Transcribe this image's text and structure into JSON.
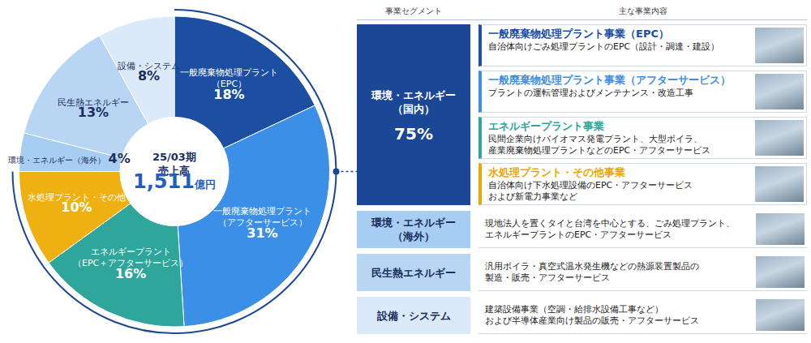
{
  "chart_data": {
    "type": "donut",
    "title": "25/03期",
    "subtitle": "売上高",
    "total": {
      "value": 1511,
      "label": "1,511",
      "unit": "億円"
    },
    "categories": [
      "一般廃棄物処理プラント（EPC）",
      "一般廃棄物処理プラント（アフターサービス）",
      "エネルギープラント（EPC＋アフターサービス）",
      "水処理プラント・その他",
      "環境・エネルギー（海外）",
      "民生熱エネルギー",
      "設備・システム"
    ],
    "values": [
      18,
      31,
      16,
      10,
      4,
      13,
      8
    ],
    "value_labels": [
      "18%",
      "31%",
      "16%",
      "10%",
      "4%",
      "13%",
      "8%"
    ],
    "colors": [
      "#1c4fa1",
      "#3b8fe6",
      "#2ea69b",
      "#eeb111",
      "#a7cdf2",
      "#b8d6f4",
      "#dbe9f8"
    ],
    "data_labels": true
  },
  "table": {
    "header": [
      "事業セグメント",
      "主な事業内容"
    ],
    "segments": [
      {
        "name": "環境・エネルギー（国内）",
        "share": 75,
        "share_label": "75%",
        "color": "#1c4696",
        "entries": [
          {
            "title": "一般廃棄物処理プラント事業（EPC）",
            "color": "#1c4fa1",
            "description": [
              "自治体向けごみ処理プラントのEPC（設計・調達・建設）"
            ]
          },
          {
            "title": "一般廃棄物処理プラント事業（アフターサービス）",
            "color": "#3b8fe6",
            "description": [
              "プラントの運転管理およびメンテナンス・改造工事"
            ]
          },
          {
            "title": "エネルギープラント事業",
            "color": "#2ea69b",
            "description": [
              "民間企業向けバイオマス発電プラント、大型ボイラ、",
              "産業廃棄物処理プラントなどのEPC・アフターサービス"
            ]
          },
          {
            "title": "水処理プラント・その他事業",
            "color": "#e9a800",
            "description": [
              "自治体向け下水処理設備のEPC・アフターサービス",
              "および新電力事業など"
            ]
          }
        ]
      },
      {
        "name": "環境・エネルギー（海外）",
        "color": "#a7cdf2",
        "description": [
          "現地法人を置くタイと台湾を中心とする、ごみ処理プラント、",
          "エネルギープラントのEPC・アフターサービス"
        ]
      },
      {
        "name": "民生熱エネルギー",
        "color": "#b8d6f4",
        "description": [
          "汎用ボイラ・真空式温水発生機などの熱源装置製品の",
          "製造・販売・アフターサービス"
        ]
      },
      {
        "name": "設備・システム",
        "color": "#dbe9f8",
        "description": [
          "建築設備事業（空調・給排水設備工事など）",
          "および半導体産業向け製品の販売・アフターサービス"
        ]
      }
    ]
  }
}
